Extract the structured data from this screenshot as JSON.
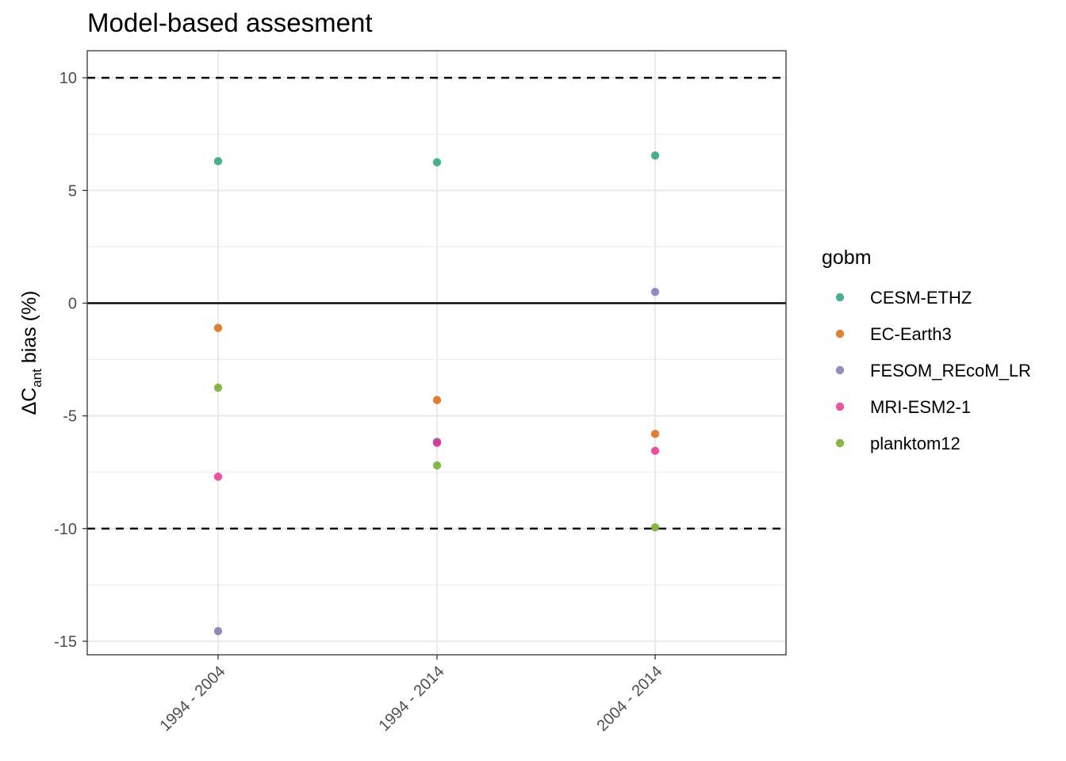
{
  "chart_data": {
    "type": "scatter",
    "title": "Model-based assesment",
    "ylabel": {
      "prefix": "ΔC",
      "subscript": "ant",
      "suffix": " bias (%)"
    },
    "xlabel": "",
    "categories": [
      "1994 - 2004",
      "1994 - 2014",
      "2004 - 2014"
    ],
    "ylim": [
      -15.6,
      11.2
    ],
    "yticks": [
      10,
      5,
      0,
      -5,
      -10,
      -15
    ],
    "ytick_labels": [
      "10",
      "5",
      "0",
      "-5",
      "-10",
      "-15"
    ],
    "grid": true,
    "reference_lines": [
      {
        "y": 10,
        "style": "dashed"
      },
      {
        "y": 0,
        "style": "solid"
      },
      {
        "y": -10,
        "style": "dashed"
      }
    ],
    "legend": {
      "title": "gobm",
      "position": "right"
    },
    "series": [
      {
        "name": "CESM-ETHZ",
        "color": "#1B9E77",
        "values": [
          6.3,
          6.25,
          6.55
        ]
      },
      {
        "name": "EC-Earth3",
        "color": "#D95F02",
        "values": [
          -1.1,
          -4.3,
          -5.8
        ]
      },
      {
        "name": "FESOM_REcoM_LR",
        "color": "#7570B3",
        "values": [
          -14.55,
          -6.15,
          0.5
        ]
      },
      {
        "name": "MRI-ESM2-1",
        "color": "#E7298A",
        "values": [
          -7.7,
          -6.2,
          -6.55
        ]
      },
      {
        "name": "planktom12",
        "color": "#66A61E",
        "values": [
          -3.75,
          -7.2,
          -9.95
        ]
      }
    ]
  }
}
